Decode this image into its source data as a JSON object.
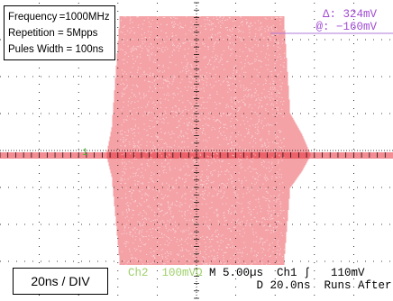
{
  "info": {
    "frequency": "Frequency =1000MHz",
    "repetition": "Repetition  = 5Mpps",
    "pulse_width": "Pules Width = 100ns"
  },
  "timebase_label": "20ns / DIV",
  "cursor": {
    "delta": "Δ: 324mV",
    "at": "@: −160mV"
  },
  "status": {
    "ch2": "Ch2  100mVΩ",
    "main": "M 5.00µs  Ch1 ʃ   110mV",
    "delay": "D 20.0ns  Runs After"
  },
  "ch1_marker": "1",
  "colors": {
    "signal": "#e8303a",
    "graticule": "#000000",
    "cursor_text": "#a24bd2",
    "ch2_text": "#9ed06a"
  }
}
